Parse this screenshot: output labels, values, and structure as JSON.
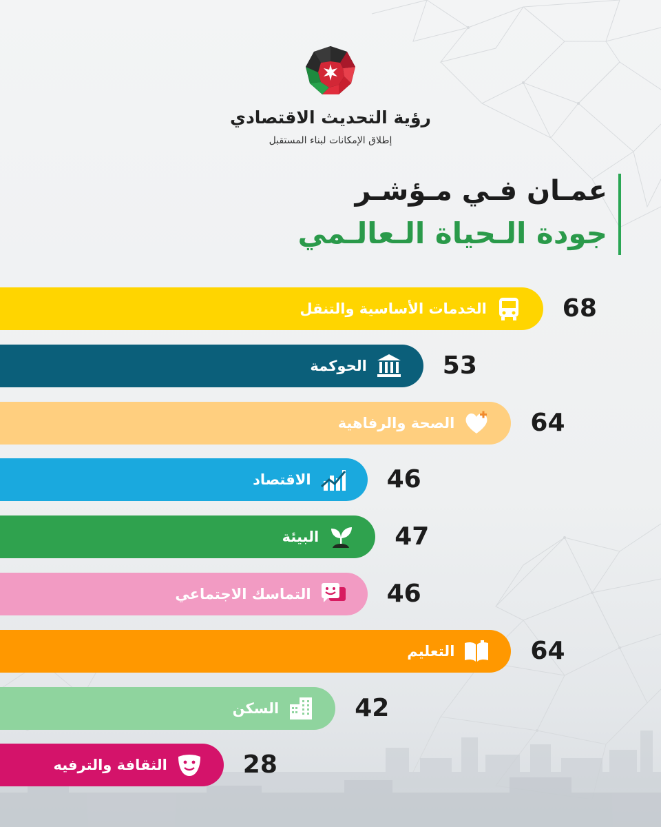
{
  "brand": {
    "name": "رؤية التحديث الاقتصادي",
    "tagline": "إطلاق الإمكانات لبناء المستقبل"
  },
  "heading": {
    "line1": "عمـان فـي مـؤشـر",
    "line2": "جودة الـحياة الـعالـمي"
  },
  "colors": {
    "heading_accent": "#2aa654",
    "logo_red": "#c8202f",
    "logo_green": "#1e8a3e",
    "logo_black": "#1a1a1a"
  },
  "chart_data": {
    "type": "bar",
    "orientation": "horizontal",
    "categories": [
      "الخدمات الأساسية والتنقل",
      "الحوكمة",
      "الصحة والرفاهية",
      "الاقتصاد",
      "البيئة",
      "التماسك الاجتماعي",
      "التعليم",
      "السكن",
      "الثقافة والترفيه"
    ],
    "values": [
      68,
      53,
      64,
      46,
      47,
      46,
      64,
      42,
      28
    ],
    "value_labels": [
      "68",
      "53",
      "64",
      "46",
      "47",
      "46",
      "64",
      "42",
      "28"
    ],
    "colors": [
      "#ffd500",
      "#0b5f7a",
      "#ffcf7f",
      "#1aa9de",
      "#2fa24e",
      "#f29bc3",
      "#ff9800",
      "#8fd49e",
      "#d4136a"
    ],
    "icons": [
      "bus-icon",
      "government-building-icon",
      "heart-plus-icon",
      "growth-chart-icon",
      "seedling-icon",
      "chat-smile-icon",
      "open-book-icon",
      "buildings-icon",
      "theater-mask-icon"
    ],
    "xlim": [
      0,
      100
    ],
    "grid": false,
    "legend": "none"
  }
}
